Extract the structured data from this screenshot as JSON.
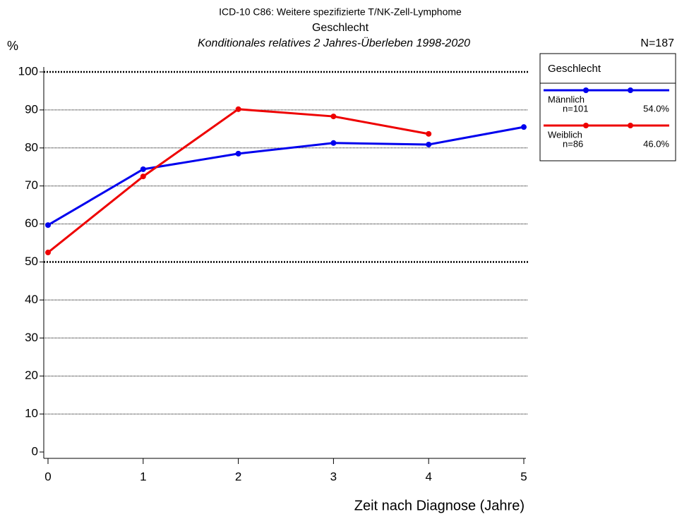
{
  "chart_data": {
    "type": "line",
    "title": "ICD-10 C86: Weitere spezifizierte T/NK-Zell-Lymphome",
    "subtitle": "Geschlecht",
    "subtitle2": "Konditionales relatives 2 Jahres-Überleben 1998-2020",
    "y_label": "%",
    "x_label": "Zeit nach Diagnose (Jahre)",
    "total_label": "N=187",
    "legend_title": "Geschlecht",
    "x": [
      0,
      1,
      2,
      3,
      4,
      5
    ],
    "series": [
      {
        "name": "Männlich",
        "color": "#0000ee",
        "values": [
          59.7,
          74.4,
          78.5,
          81.3,
          80.9,
          85.5
        ],
        "n_label": "n=101",
        "share_label": "54.0%"
      },
      {
        "name": "Weiblich",
        "color": "#ee0000",
        "values": [
          52.5,
          72.5,
          90.2,
          88.3,
          83.7,
          null
        ],
        "n_label": "n=86",
        "share_label": "46.0%"
      }
    ],
    "xlim": [
      0,
      5
    ],
    "xticks": [
      0,
      1,
      2,
      3,
      4,
      5
    ],
    "ylim": [
      0,
      100
    ],
    "yticks": [
      0,
      10,
      20,
      30,
      40,
      50,
      60,
      70,
      80,
      90,
      100
    ],
    "strong_grid": [
      50,
      100
    ],
    "grid": true
  }
}
